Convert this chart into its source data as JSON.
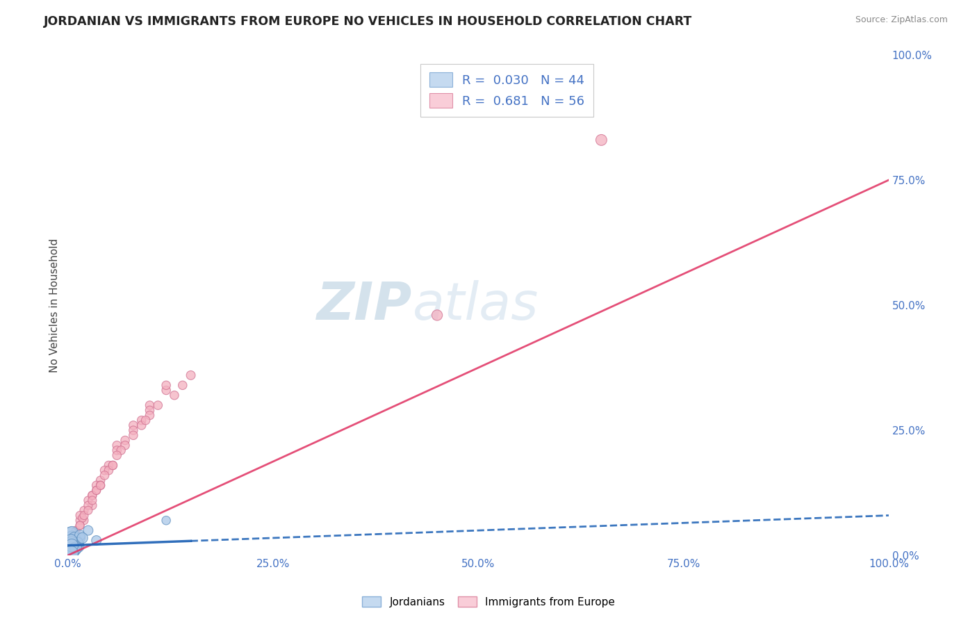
{
  "title": "JORDANIAN VS IMMIGRANTS FROM EUROPE NO VEHICLES IN HOUSEHOLD CORRELATION CHART",
  "source": "Source: ZipAtlas.com",
  "ylabel": "No Vehicles in Household",
  "xlim": [
    0,
    100
  ],
  "ylim": [
    0,
    100
  ],
  "legend_r1": "R =  0.030",
  "legend_n1": "N = 44",
  "legend_r2": "R =  0.681",
  "legend_n2": "N = 56",
  "blue_scatter_color": "#aac8e8",
  "pink_scatter_color": "#f4b0c0",
  "blue_line_color": "#1a5fb4",
  "pink_line_color": "#e03060",
  "blue_edge_color": "#6090c0",
  "pink_edge_color": "#d07090",
  "watermark_text": "ZIPAtlas",
  "watermark_color": "#ccdaeb",
  "title_color": "#222222",
  "axis_tick_color": "#4472c4",
  "ylabel_color": "#444444",
  "grid_color": "#cccccc",
  "legend_text_color": "#4472c4",
  "jordanians_x": [
    0.3,
    0.5,
    0.4,
    0.6,
    0.8,
    1.0,
    1.2,
    0.3,
    0.5,
    0.7,
    1.5,
    0.4,
    0.6,
    0.9,
    1.1,
    0.2,
    0.8,
    1.3,
    0.5,
    0.7,
    1.0,
    0.4,
    0.6,
    0.3,
    0.8,
    1.5,
    0.5,
    0.7,
    1.2,
    0.4,
    2.5,
    0.3,
    0.6,
    0.9,
    0.5,
    0.4,
    1.8,
    0.3,
    0.6,
    1.0,
    0.5,
    12.0,
    0.4,
    3.5
  ],
  "jordanians_y": [
    1.0,
    2.0,
    1.5,
    3.0,
    2.5,
    1.8,
    2.2,
    4.0,
    3.5,
    2.0,
    3.5,
    1.0,
    2.5,
    1.5,
    2.8,
    0.5,
    1.2,
    1.8,
    4.5,
    3.0,
    2.5,
    1.5,
    2.0,
    1.0,
    3.5,
    4.0,
    2.0,
    1.5,
    2.5,
    1.0,
    5.0,
    0.8,
    1.5,
    2.0,
    2.5,
    3.0,
    3.5,
    0.5,
    1.0,
    1.5,
    2.0,
    7.0,
    0.5,
    3.0
  ],
  "jordanians_size": [
    300,
    200,
    250,
    180,
    220,
    160,
    150,
    280,
    200,
    170,
    120,
    230,
    180,
    200,
    150,
    350,
    180,
    140,
    180,
    160,
    150,
    200,
    170,
    250,
    140,
    120,
    180,
    160,
    140,
    200,
    100,
    280,
    160,
    150,
    170,
    160,
    120,
    300,
    200,
    150,
    180,
    80,
    220,
    100
  ],
  "europe_x": [
    0.5,
    1.0,
    1.5,
    2.0,
    3.0,
    4.0,
    5.0,
    6.0,
    8.0,
    10.0,
    12.0,
    0.8,
    1.5,
    2.5,
    3.5,
    4.5,
    6.0,
    8.0,
    10.0,
    15.0,
    1.0,
    2.0,
    3.0,
    4.0,
    5.5,
    7.0,
    9.0,
    12.0,
    1.5,
    2.5,
    3.5,
    5.0,
    7.0,
    10.0,
    0.8,
    1.8,
    3.0,
    4.5,
    6.5,
    9.0,
    13.0,
    45.0,
    65.0,
    2.0,
    3.5,
    5.5,
    8.0,
    11.0,
    1.0,
    2.5,
    4.0,
    6.0,
    9.5,
    14.0,
    1.5,
    3.0
  ],
  "europe_y": [
    2.0,
    5.0,
    7.0,
    9.0,
    12.0,
    15.0,
    18.0,
    22.0,
    26.0,
    30.0,
    33.0,
    4.0,
    8.0,
    11.0,
    14.0,
    17.0,
    21.0,
    25.0,
    29.0,
    36.0,
    3.0,
    7.0,
    10.0,
    14.0,
    18.0,
    23.0,
    27.0,
    34.0,
    6.0,
    10.0,
    13.0,
    17.0,
    22.0,
    28.0,
    3.5,
    7.5,
    12.0,
    16.0,
    21.0,
    26.0,
    32.0,
    48.0,
    83.0,
    8.0,
    13.0,
    18.0,
    24.0,
    30.0,
    4.0,
    9.0,
    14.0,
    20.0,
    27.0,
    34.0,
    6.0,
    11.0
  ],
  "europe_size": [
    70,
    75,
    75,
    75,
    80,
    80,
    80,
    80,
    80,
    80,
    80,
    75,
    75,
    75,
    80,
    80,
    80,
    80,
    80,
    85,
    75,
    75,
    80,
    80,
    80,
    80,
    80,
    80,
    75,
    75,
    75,
    80,
    80,
    80,
    75,
    75,
    75,
    80,
    80,
    80,
    80,
    120,
    130,
    75,
    75,
    80,
    80,
    80,
    75,
    75,
    75,
    80,
    80,
    80,
    75,
    75
  ],
  "pink_line_x0": 0,
  "pink_line_y0": 0,
  "pink_line_x1": 100,
  "pink_line_y1": 75,
  "blue_line_x0": 0,
  "blue_line_y0": 2.0,
  "blue_line_x1": 100,
  "blue_line_y1": 8.0
}
